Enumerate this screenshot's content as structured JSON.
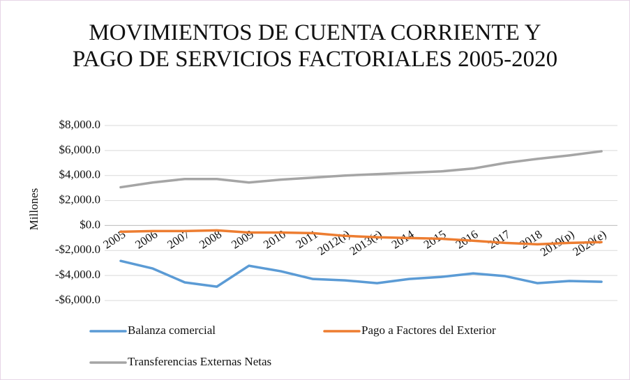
{
  "chart_data": {
    "type": "line",
    "title": "MOVIMIENTOS DE CUENTA CORRIENTE Y PAGO DE SERVICIOS FACTORIALES 2005-2020",
    "ylabel": "Millones",
    "categories": [
      "2005",
      "2006",
      "2007",
      "2008",
      "2009",
      "2010",
      "2011",
      "2012(r)",
      "2013(r)",
      "2014",
      "2015",
      "2016",
      "2017",
      "2018",
      "2019(p)",
      "2020(e)"
    ],
    "series": [
      {
        "name": "Balanza comercial",
        "color": "#5b9bd5",
        "values": [
          -2833,
          -3440,
          -4550,
          -4890,
          -3220,
          -3660,
          -4280,
          -4390,
          -4610,
          -4280,
          -4110,
          -3830,
          -4050,
          -4610,
          -4440,
          -4500
        ]
      },
      {
        "name": "Pago a Factores del Exterior",
        "color": "#ed7d31",
        "values": [
          -500,
          -440,
          -440,
          -390,
          -560,
          -560,
          -610,
          -830,
          -940,
          -1000,
          -1060,
          -1220,
          -1390,
          -1500,
          -1390,
          -1330
        ]
      },
      {
        "name": "Transferencias Externas Netas",
        "color": "#a5a5a5",
        "values": [
          3060,
          3440,
          3720,
          3720,
          3440,
          3670,
          3830,
          4000,
          4110,
          4220,
          4330,
          4560,
          5000,
          5330,
          5610,
          5940
        ]
      }
    ],
    "ylim": [
      -6000,
      8000
    ],
    "yticks": [
      {
        "value": -6000,
        "label": "-$6,000.0"
      },
      {
        "value": -4000,
        "label": "-$4,000.0"
      },
      {
        "value": -2000,
        "label": "-$2,000.0"
      },
      {
        "value": 0,
        "label": "$0.0"
      },
      {
        "value": 2000,
        "label": "$2,000.0"
      },
      {
        "value": 4000,
        "label": "$4,000.0"
      },
      {
        "value": 6000,
        "label": "$6,000.0"
      },
      {
        "value": 8000,
        "label": "$8,000.0"
      }
    ],
    "grid": true,
    "legend": "bottom"
  }
}
